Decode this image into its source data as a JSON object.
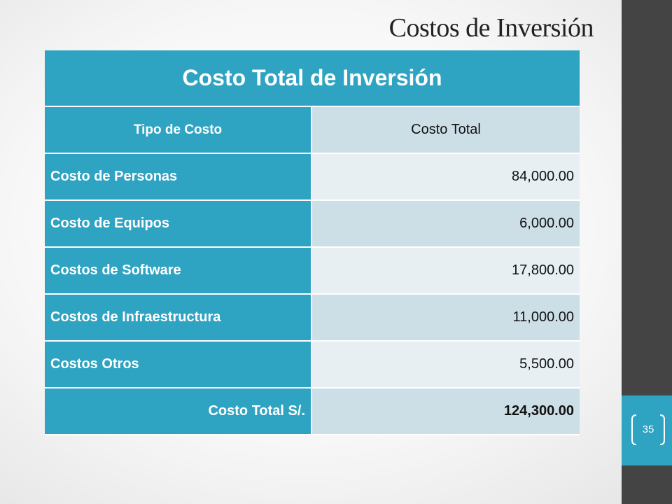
{
  "slide": {
    "title": "Costos de Inversión",
    "page_number": "35"
  },
  "table": {
    "title": "Costo Total de Inversión",
    "columns": [
      "Tipo de Costo",
      "Costo Total"
    ],
    "rows": [
      {
        "label": "Costo de Personas",
        "value": "84,000.00"
      },
      {
        "label": "Costo de Equipos",
        "value": "6,000.00"
      },
      {
        "label": "Costos de Software",
        "value": "17,800.00"
      },
      {
        "label": "Costos de Infraestructura",
        "value": "11,000.00"
      },
      {
        "label": "Costos Otros",
        "value": "5,500.00"
      }
    ],
    "total": {
      "label": "Costo Total S/.",
      "value": "124,300.00"
    }
  },
  "colors": {
    "accent": "#2fa3c2",
    "sidebar": "#444444",
    "row_dark": "#cddfe6",
    "row_light": "#e7eff3"
  }
}
